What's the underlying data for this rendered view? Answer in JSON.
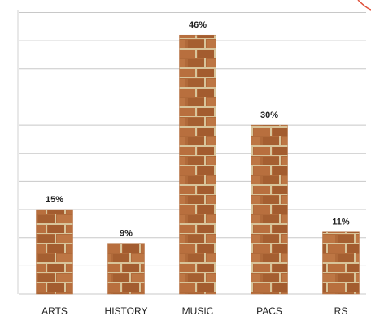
{
  "chart_data": {
    "type": "bar",
    "categories": [
      "ARTS",
      "HISTORY",
      "MUSIC",
      "PACS",
      "RS"
    ],
    "values": [
      15,
      9,
      46,
      30,
      11
    ],
    "value_labels": [
      "15%",
      "9%",
      "46%",
      "30%",
      "11%"
    ],
    "color": "#b06a3a",
    "ylim": [
      0,
      50
    ],
    "yticks": [
      0,
      5,
      10,
      15,
      20,
      25,
      30,
      35,
      40,
      45,
      50
    ],
    "grid": true
  }
}
